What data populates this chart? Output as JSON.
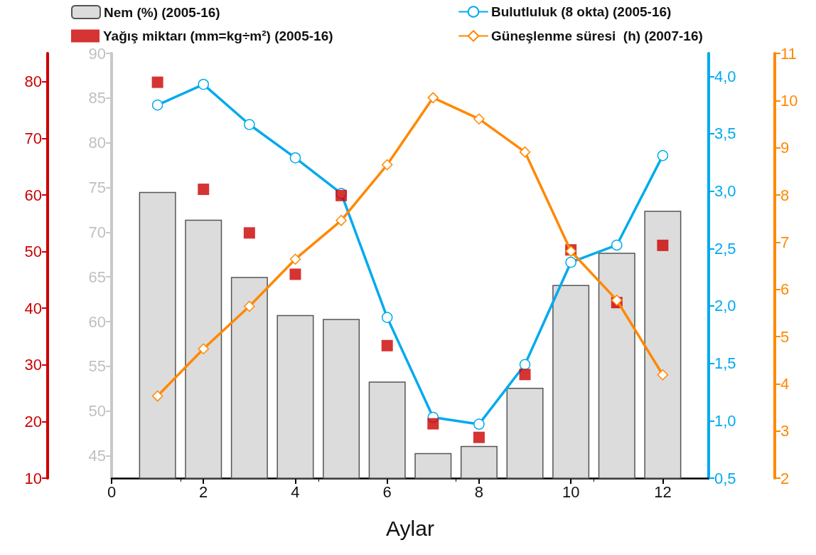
{
  "chart_data": [
    {
      "type": "bar",
      "xlabel": "Aylar",
      "x": [
        1,
        2,
        3,
        4,
        5,
        6,
        7,
        8,
        9,
        10,
        11,
        12
      ],
      "xlim": [
        0,
        13
      ],
      "xticks": [
        0,
        2,
        4,
        6,
        8,
        10,
        12
      ],
      "ylim": [
        42.5,
        90
      ],
      "yticks": [
        45,
        50,
        55,
        60,
        65,
        70,
        75,
        80,
        85,
        90
      ],
      "y2lim": [
        10,
        85
      ],
      "y2ticks": [
        10,
        20,
        30,
        40,
        50,
        60,
        70,
        80
      ],
      "y3lim": [
        0.5,
        4.2
      ],
      "y3ticks": [
        {
          "value": 0.5,
          "label": "0,5"
        },
        {
          "value": 1,
          "label": "1,0"
        },
        {
          "value": 1.5,
          "label": "1,5"
        },
        {
          "value": 2,
          "label": "2,0"
        },
        {
          "value": 2.5,
          "label": "2,5"
        },
        {
          "value": 3,
          "label": "3,0"
        },
        {
          "value": 3.5,
          "label": "3,5"
        },
        {
          "value": 4,
          "label": "4,0"
        }
      ],
      "legend": "top",
      "series": [
        {
          "name": "Nem (%) (2005-16)",
          "color": "#dcdcdc",
          "values": [
            74.5,
            71.4,
            65,
            60.75,
            60.3,
            53.3,
            45.3,
            46.1,
            52.6,
            64.1,
            67.7,
            72.4
          ]
        },
        {
          "name": "Bulutluluk (8 okta) (2005-16)",
          "type": "line",
          "axis": "y3",
          "marker": "circle",
          "color": "#00aaee",
          "values": [
            3.75,
            3.93,
            3.58,
            3.29,
            2.98,
            1.9,
            1.03,
            0.97,
            1.49,
            2.38,
            2.53,
            3.31
          ]
        },
        {
          "name": "Yağış miktarı (mm=kg÷m²) (2005-16)",
          "type": "scatter",
          "axis": "y2",
          "marker": "square",
          "color": "#cc0000",
          "values": [
            79.9,
            61,
            53.3,
            46,
            59.9,
            33.4,
            19.6,
            17.2,
            28.3,
            50.3,
            41,
            51.1
          ]
        }
      ]
    },
    {
      "type": "line",
      "x": [
        1,
        2,
        3,
        4,
        5,
        6,
        7,
        8,
        9,
        10,
        11,
        12
      ],
      "xlim": [
        0,
        13
      ],
      "ylim": [
        2,
        11
      ],
      "yticks": [
        2,
        3,
        4,
        5,
        6,
        7,
        8,
        9,
        10,
        11
      ],
      "tick_labels": "y",
      "legend": "top",
      "marker": "diamond",
      "series": [
        {
          "name": "Güneşlenme süresi  (h) (2007-16)",
          "color": "#ff8800",
          "values": [
            3.74,
            4.74,
            5.64,
            6.64,
            7.46,
            8.64,
            10.06,
            9.61,
            8.91,
            6.81,
            5.77,
            4.19
          ]
        }
      ]
    }
  ]
}
